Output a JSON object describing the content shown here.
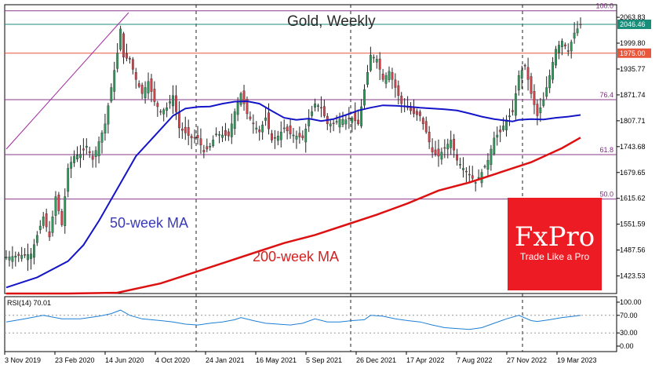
{
  "chart_data": {
    "type": "candlestick",
    "title": "Gold, Weekly",
    "y_ticks": [
      "2063.83",
      "1999.80",
      "1935.77",
      "1871.74",
      "1807.71",
      "1743.68",
      "1679.65",
      "1615.62",
      "1551.59",
      "1487.56",
      "1423.53"
    ],
    "ylim": [
      1380,
      2095
    ],
    "x_ticks": [
      "3 Nov 2019",
      "23 Feb 2020",
      "14 Jun 2020",
      "4 Oct 2020",
      "24 Jan 2021",
      "16 May 2021",
      "5 Sep 2021",
      "26 Dec 2021",
      "17 Apr 2022",
      "7 Aug 2022",
      "27 Nov 2022",
      "19 Mar 2023"
    ],
    "price_tags": [
      {
        "label": "2046.46",
        "value": 2046.46,
        "color": "#1a8c7a"
      },
      {
        "label": "1975.00",
        "value": 1975.0,
        "color": "#e8573c"
      }
    ],
    "fib_levels": [
      {
        "label": "100.0",
        "value": 2080
      },
      {
        "label": "76.4",
        "value": 1860
      },
      {
        "label": "61.8",
        "value": 1724
      },
      {
        "label": "50.0",
        "value": 1614
      }
    ],
    "price_path": [
      [
        0,
        1470
      ],
      [
        8,
        1478
      ],
      [
        12,
        1570
      ],
      [
        14,
        1520
      ],
      [
        16,
        1620
      ],
      [
        18,
        1550
      ],
      [
        20,
        1690
      ],
      [
        22,
        1720
      ],
      [
        24,
        1725
      ],
      [
        26,
        1745
      ],
      [
        28,
        1712
      ],
      [
        32,
        1800
      ],
      [
        34,
        1890
      ],
      [
        36,
        1975
      ],
      [
        37,
        2035
      ],
      [
        38,
        1965
      ],
      [
        40,
        1960
      ],
      [
        42,
        1910
      ],
      [
        44,
        1875
      ],
      [
        46,
        1905
      ],
      [
        48,
        1855
      ],
      [
        50,
        1830
      ],
      [
        52,
        1840
      ],
      [
        54,
        1870
      ],
      [
        56,
        1790
      ],
      [
        60,
        1765
      ],
      [
        62,
        1765
      ],
      [
        64,
        1730
      ],
      [
        66,
        1745
      ],
      [
        68,
        1775
      ],
      [
        72,
        1770
      ],
      [
        74,
        1830
      ],
      [
        76,
        1875
      ],
      [
        78,
        1825
      ],
      [
        80,
        1800
      ],
      [
        82,
        1780
      ],
      [
        84,
        1815
      ],
      [
        86,
        1760
      ],
      [
        88,
        1770
      ],
      [
        90,
        1790
      ],
      [
        92,
        1775
      ],
      [
        94,
        1770
      ],
      [
        96,
        1765
      ],
      [
        98,
        1810
      ],
      [
        100,
        1850
      ],
      [
        102,
        1840
      ],
      [
        104,
        1800
      ],
      [
        106,
        1800
      ],
      [
        108,
        1812
      ],
      [
        110,
        1810
      ],
      [
        112,
        1815
      ],
      [
        114,
        1800
      ],
      [
        118,
        1970
      ],
      [
        120,
        1960
      ],
      [
        122,
        1910
      ],
      [
        124,
        1930
      ],
      [
        126,
        1890
      ],
      [
        128,
        1850
      ],
      [
        130,
        1840
      ],
      [
        132,
        1825
      ],
      [
        134,
        1820
      ],
      [
        136,
        1780
      ],
      [
        138,
        1730
      ],
      [
        140,
        1720
      ],
      [
        142,
        1740
      ],
      [
        144,
        1760
      ],
      [
        146,
        1710
      ],
      [
        148,
        1690
      ],
      [
        150,
        1675
      ],
      [
        152,
        1655
      ],
      [
        154,
        1680
      ],
      [
        156,
        1710
      ],
      [
        158,
        1765
      ],
      [
        160,
        1780
      ],
      [
        162,
        1810
      ],
      [
        164,
        1830
      ],
      [
        166,
        1920
      ],
      [
        168,
        1945
      ],
      [
        170,
        1875
      ],
      [
        172,
        1820
      ],
      [
        174,
        1860
      ],
      [
        176,
        1920
      ],
      [
        178,
        1985
      ],
      [
        180,
        2005
      ],
      [
        182,
        1980
      ],
      [
        184,
        2025
      ],
      [
        186,
        2046
      ]
    ],
    "ma50_label": "50-week MA",
    "ma50_color": "#1414c8",
    "ma50": [
      [
        0,
        1395
      ],
      [
        10,
        1420
      ],
      [
        20,
        1460
      ],
      [
        25,
        1500
      ],
      [
        30,
        1560
      ],
      [
        36,
        1640
      ],
      [
        42,
        1720
      ],
      [
        48,
        1770
      ],
      [
        54,
        1820
      ],
      [
        58,
        1838
      ],
      [
        62,
        1842
      ],
      [
        66,
        1843
      ],
      [
        70,
        1850
      ],
      [
        74,
        1855
      ],
      [
        78,
        1856
      ],
      [
        82,
        1850
      ],
      [
        86,
        1832
      ],
      [
        90,
        1815
      ],
      [
        94,
        1810
      ],
      [
        98,
        1813
      ],
      [
        102,
        1807
      ],
      [
        106,
        1812
      ],
      [
        110,
        1822
      ],
      [
        114,
        1833
      ],
      [
        118,
        1840
      ],
      [
        122,
        1846
      ],
      [
        126,
        1845
      ],
      [
        130,
        1843
      ],
      [
        134,
        1840
      ],
      [
        138,
        1838
      ],
      [
        142,
        1836
      ],
      [
        146,
        1833
      ],
      [
        150,
        1826
      ],
      [
        154,
        1818
      ],
      [
        158,
        1812
      ],
      [
        160,
        1810
      ],
      [
        164,
        1806
      ],
      [
        166,
        1810
      ],
      [
        170,
        1812
      ],
      [
        174,
        1811
      ],
      [
        178,
        1815
      ],
      [
        182,
        1818
      ],
      [
        186,
        1822
      ]
    ],
    "ma200_label": "200-week MA",
    "ma200_color": "#dd1111",
    "ma200": [
      [
        0,
        1380
      ],
      [
        20,
        1380
      ],
      [
        36,
        1382
      ],
      [
        50,
        1405
      ],
      [
        60,
        1430
      ],
      [
        70,
        1455
      ],
      [
        80,
        1480
      ],
      [
        90,
        1505
      ],
      [
        100,
        1525
      ],
      [
        110,
        1550
      ],
      [
        120,
        1575
      ],
      [
        130,
        1603
      ],
      [
        140,
        1635
      ],
      [
        150,
        1655
      ],
      [
        160,
        1680
      ],
      [
        170,
        1705
      ],
      [
        180,
        1740
      ],
      [
        186,
        1766
      ]
    ],
    "rsi": {
      "label": "RSI(14) 70.01",
      "levels": [
        "100.00",
        "70.00",
        "30.00",
        "0.00"
      ],
      "ylim": [
        0,
        100
      ],
      "color": "#1e7fd6",
      "path": [
        [
          0,
          55
        ],
        [
          6,
          62
        ],
        [
          12,
          70
        ],
        [
          18,
          62
        ],
        [
          24,
          62
        ],
        [
          30,
          68
        ],
        [
          34,
          74
        ],
        [
          37,
          82
        ],
        [
          40,
          70
        ],
        [
          44,
          62
        ],
        [
          50,
          58
        ],
        [
          54,
          55
        ],
        [
          58,
          50
        ],
        [
          62,
          48
        ],
        [
          66,
          52
        ],
        [
          70,
          55
        ],
        [
          74,
          60
        ],
        [
          76,
          65
        ],
        [
          80,
          58
        ],
        [
          84,
          52
        ],
        [
          88,
          50
        ],
        [
          92,
          48
        ],
        [
          96,
          52
        ],
        [
          100,
          62
        ],
        [
          104,
          55
        ],
        [
          108,
          55
        ],
        [
          112,
          58
        ],
        [
          116,
          60
        ],
        [
          118,
          70
        ],
        [
          122,
          68
        ],
        [
          126,
          62
        ],
        [
          130,
          58
        ],
        [
          134,
          55
        ],
        [
          138,
          48
        ],
        [
          142,
          42
        ],
        [
          146,
          40
        ],
        [
          150,
          38
        ],
        [
          154,
          42
        ],
        [
          158,
          52
        ],
        [
          162,
          62
        ],
        [
          166,
          70
        ],
        [
          170,
          58
        ],
        [
          172,
          56
        ],
        [
          176,
          60
        ],
        [
          180,
          65
        ],
        [
          184,
          68
        ],
        [
          186,
          70
        ]
      ]
    }
  },
  "brand": {
    "name": "FxPro",
    "tagline": "Trade Like a Pro",
    "color": "#ed1c24"
  }
}
